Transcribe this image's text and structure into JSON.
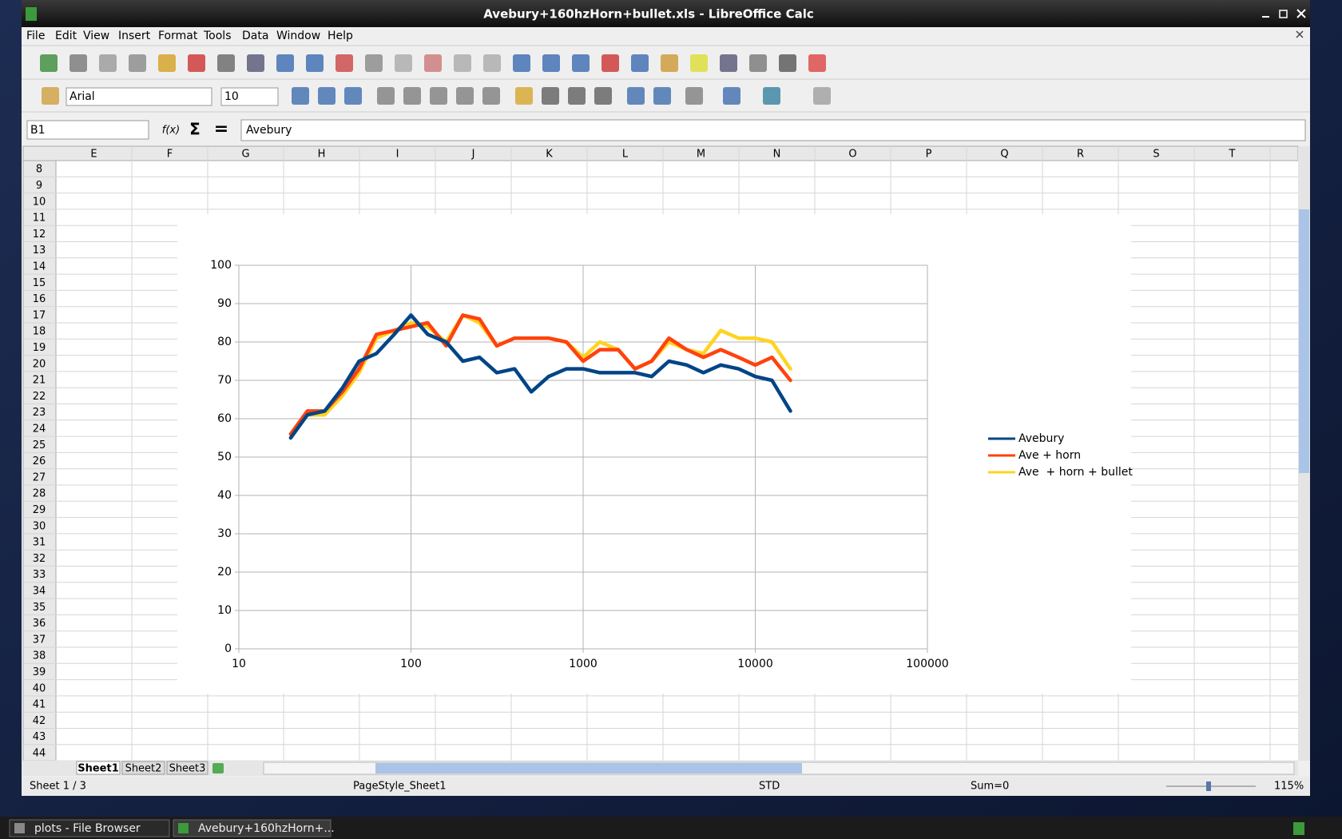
{
  "window": {
    "title": "Avebury+160hzHorn+bullet.xls - LibreOffice Calc"
  },
  "menu": [
    "File",
    "Edit",
    "View",
    "Insert",
    "Format",
    "Tools",
    "Data",
    "Window",
    "Help"
  ],
  "toolbar": {
    "font_name": "Arial",
    "font_size": "10"
  },
  "formula_bar": {
    "cell_ref": "B1",
    "function_wizard": "f(x)",
    "sum_icon": "Σ",
    "equals_icon": "=",
    "content": "Avebury"
  },
  "columns": [
    "E",
    "F",
    "G",
    "H",
    "I",
    "J",
    "K",
    "L",
    "M",
    "N",
    "O",
    "P",
    "Q",
    "R",
    "S",
    "T"
  ],
  "rows": [
    8,
    9,
    10,
    11,
    12,
    13,
    14,
    15,
    16,
    17,
    18,
    19,
    20,
    21,
    22,
    23,
    24,
    25,
    26,
    27,
    28,
    29,
    30,
    31,
    32,
    33,
    34,
    35,
    36,
    37,
    38,
    39,
    40,
    41,
    42,
    43,
    44
  ],
  "sheet_tabs": [
    "Sheet1",
    "Sheet2",
    "Sheet3"
  ],
  "status_bar": {
    "sheet": "Sheet 1 / 3",
    "page_style": "PageStyle_Sheet1",
    "mode": "STD",
    "sum": "Sum=0",
    "zoom": "115%"
  },
  "taskbar": [
    "plots - File Browser",
    "Avebury+160hzHorn+..."
  ],
  "chart_data": {
    "type": "line",
    "log_x": true,
    "grid": true,
    "legend": "right",
    "xlim": [
      10,
      100000
    ],
    "xticks": [
      10,
      100,
      1000,
      10000,
      100000
    ],
    "ylim": [
      0,
      100
    ],
    "yticks": [
      0,
      10,
      20,
      30,
      40,
      50,
      60,
      70,
      80,
      90,
      100
    ],
    "x": [
      20,
      25,
      31.5,
      40,
      50,
      63,
      80,
      100,
      125,
      160,
      200,
      250,
      315,
      400,
      500,
      630,
      800,
      1000,
      1250,
      1600,
      2000,
      2500,
      3150,
      4000,
      5000,
      6300,
      8000,
      10000,
      12500,
      16000
    ],
    "series": [
      {
        "name": "Avebury",
        "color": "#004586",
        "values": [
          55,
          61,
          62,
          68,
          75,
          77,
          82,
          87,
          82,
          80,
          75,
          76,
          72,
          73,
          67,
          71,
          73,
          73,
          72,
          72,
          72,
          71,
          75,
          74,
          72,
          74,
          73,
          71,
          70,
          62
        ]
      },
      {
        "name": "Ave + horn",
        "color": "#ff420e",
        "values": [
          56,
          62,
          62,
          67,
          73,
          82,
          83,
          84,
          85,
          79,
          87,
          86,
          79,
          81,
          81,
          81,
          80,
          75,
          78,
          78,
          73,
          75,
          81,
          78,
          76,
          78,
          76,
          74,
          76,
          70
        ]
      },
      {
        "name": "Ave  + horn + bullet",
        "color": "#ffd320",
        "values": [
          56,
          61,
          61,
          66,
          72,
          81,
          83,
          85,
          84,
          80,
          87,
          85,
          79,
          81,
          81,
          81,
          80,
          76,
          80,
          78,
          73,
          75,
          80,
          78,
          77,
          83,
          81,
          81,
          80,
          73
        ]
      }
    ]
  }
}
